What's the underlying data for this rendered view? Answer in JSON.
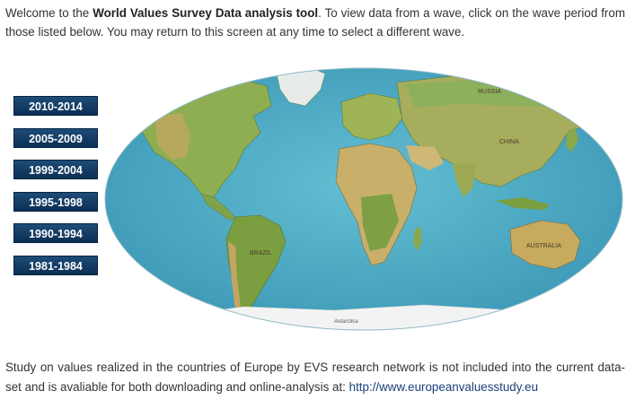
{
  "intro": {
    "prefix": "Welcome to the ",
    "tool_name": "World Values Survey Data analysis tool",
    "suffix": ". To view data from a wave, click on the wave period from those listed below. You may return to this screen at any time to select a different wave."
  },
  "waves": [
    {
      "label": "2010-2014"
    },
    {
      "label": "2005-2009"
    },
    {
      "label": "1999-2004"
    },
    {
      "label": "1995-1998"
    },
    {
      "label": "1990-1994"
    },
    {
      "label": "1981-1984"
    }
  ],
  "map": {
    "region_labels": {
      "russia": "RUSSIA",
      "china": "CHINA",
      "brazil": "BRAZIL",
      "australia": "AUSTRALIA",
      "antarctica": "Antarctica"
    },
    "colors": {
      "ocean": "#4fb0c8",
      "ocean_deep": "#3a96b4",
      "land_green": "#8aa94a",
      "land_dry": "#c9b36a"
    }
  },
  "footer": {
    "text": "Study on values realized in the countries of Europe by EVS research network is not included into the current data-set and is avaliable for both downloading and online-analysis at: ",
    "link": "http://www.europeanvaluesstudy.eu"
  }
}
